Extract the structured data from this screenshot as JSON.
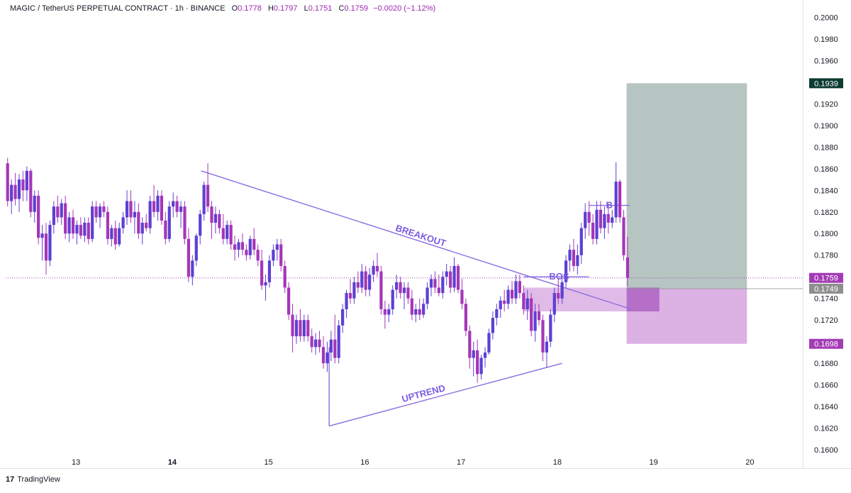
{
  "header": {
    "symbol": "MAGIC / TetherUS PERPETUAL CONTRACT · 1h · BINANCE",
    "open_label": "O",
    "open": "0.1778",
    "high_label": "H",
    "high": "0.1797",
    "low_label": "L",
    "low": "0.1751",
    "close_label": "C",
    "close": "0.1759",
    "change": "−0.0020 (−1.12%)"
  },
  "brand": {
    "logo": "17",
    "name": "TradingView"
  },
  "chart_data": {
    "type": "candlestick",
    "title": "MAGIC / TetherUS PERPETUAL CONTRACT · 1h · BINANCE",
    "y_ticks": [
      "0.1600",
      "0.1620",
      "0.1640",
      "0.1660",
      "0.1680",
      "0.1720",
      "0.1740",
      "0.1780",
      "0.1800",
      "0.1820",
      "0.1840",
      "0.1860",
      "0.1880",
      "0.1900",
      "0.1920",
      "0.1960",
      "0.1980",
      "0.2000"
    ],
    "ylim": [
      0.1583,
      0.2016
    ],
    "x_ticks": [
      {
        "label": "13",
        "day": 13,
        "bold": false
      },
      {
        "label": "14",
        "day": 14,
        "bold": true
      },
      {
        "label": "15",
        "day": 15,
        "bold": false
      },
      {
        "label": "16",
        "day": 16,
        "bold": false
      },
      {
        "label": "17",
        "day": 17,
        "bold": false
      },
      {
        "label": "18",
        "day": 18,
        "bold": false
      },
      {
        "label": "19",
        "day": 19,
        "bold": false
      },
      {
        "label": "20",
        "day": 20,
        "bold": false
      }
    ],
    "xlim_days": [
      12.27,
      20.55
    ],
    "price_labels": [
      {
        "value": 0.1939,
        "text": "0.1939",
        "color": "#0d3a32"
      },
      {
        "value": 0.1759,
        "text": "0.1759",
        "color": "#a43bb5"
      },
      {
        "value": 0.1749,
        "text": "0.1749",
        "color": "#8e8e8e"
      },
      {
        "value": 0.1698,
        "text": "0.1698",
        "color": "#a43bb5"
      }
    ],
    "current_price": 0.1759,
    "colors": {
      "up": "#5d3fd3",
      "down": "#a536b8",
      "trendline": "#8a6ee0",
      "profit_zone": "#b6c5c1",
      "stop_zone": "#dcb1e4",
      "order_block": "#c883d6"
    },
    "annotations": [
      "BREAKOUT",
      "UPTREND",
      "BOS",
      "B"
    ],
    "candles": [
      [
        12.29,
        0.1865,
        0.187,
        0.1825,
        0.183
      ],
      [
        12.33,
        0.183,
        0.185,
        0.1818,
        0.1845
      ],
      [
        12.37,
        0.1845,
        0.1856,
        0.1826,
        0.1832
      ],
      [
        12.41,
        0.1832,
        0.1855,
        0.182,
        0.185
      ],
      [
        12.45,
        0.185,
        0.1858,
        0.183,
        0.184
      ],
      [
        12.49,
        0.184,
        0.1862,
        0.183,
        0.1858
      ],
      [
        12.53,
        0.1858,
        0.186,
        0.1815,
        0.182
      ],
      [
        12.57,
        0.182,
        0.184,
        0.181,
        0.1835
      ],
      [
        12.61,
        0.1835,
        0.184,
        0.179,
        0.1796
      ],
      [
        12.65,
        0.1796,
        0.1808,
        0.1775,
        0.18
      ],
      [
        12.69,
        0.18,
        0.181,
        0.1762,
        0.1775
      ],
      [
        12.73,
        0.1775,
        0.1812,
        0.177,
        0.1808
      ],
      [
        12.77,
        0.1808,
        0.183,
        0.18,
        0.1825
      ],
      [
        12.81,
        0.1825,
        0.1835,
        0.181,
        0.1815
      ],
      [
        12.85,
        0.1815,
        0.1832,
        0.1808,
        0.1828
      ],
      [
        12.89,
        0.1828,
        0.1835,
        0.1795,
        0.18
      ],
      [
        12.93,
        0.18,
        0.182,
        0.1792,
        0.1815
      ],
      [
        12.97,
        0.1815,
        0.1822,
        0.1795,
        0.18
      ],
      [
        13.01,
        0.18,
        0.1812,
        0.179,
        0.1808
      ],
      [
        13.05,
        0.1808,
        0.1815,
        0.1795,
        0.1798
      ],
      [
        13.09,
        0.1798,
        0.1815,
        0.1792,
        0.181
      ],
      [
        13.13,
        0.181,
        0.1815,
        0.179,
        0.1795
      ],
      [
        13.17,
        0.1795,
        0.183,
        0.1792,
        0.1825
      ],
      [
        13.21,
        0.1825,
        0.183,
        0.181,
        0.1815
      ],
      [
        13.25,
        0.1815,
        0.1828,
        0.1805,
        0.1825
      ],
      [
        13.29,
        0.1825,
        0.183,
        0.1815,
        0.182
      ],
      [
        13.33,
        0.182,
        0.1825,
        0.179,
        0.1795
      ],
      [
        13.37,
        0.1795,
        0.1808,
        0.1788,
        0.1805
      ],
      [
        13.41,
        0.1805,
        0.1812,
        0.1785,
        0.179
      ],
      [
        13.45,
        0.179,
        0.181,
        0.1788,
        0.1805
      ],
      [
        13.49,
        0.1805,
        0.182,
        0.18,
        0.1815
      ],
      [
        13.53,
        0.1815,
        0.184,
        0.1808,
        0.183
      ],
      [
        13.57,
        0.183,
        0.184,
        0.181,
        0.1815
      ],
      [
        13.61,
        0.1815,
        0.183,
        0.18,
        0.182
      ],
      [
        13.65,
        0.182,
        0.1828,
        0.1795,
        0.18
      ],
      [
        13.69,
        0.18,
        0.1815,
        0.179,
        0.181
      ],
      [
        13.73,
        0.181,
        0.1818,
        0.1802,
        0.1805
      ],
      [
        13.77,
        0.1805,
        0.1835,
        0.18,
        0.183
      ],
      [
        13.81,
        0.183,
        0.1845,
        0.1815,
        0.182
      ],
      [
        13.85,
        0.182,
        0.184,
        0.1812,
        0.1835
      ],
      [
        13.89,
        0.1835,
        0.184,
        0.1808,
        0.1812
      ],
      [
        13.93,
        0.1812,
        0.182,
        0.179,
        0.1795
      ],
      [
        13.97,
        0.1795,
        0.183,
        0.1792,
        0.1825
      ],
      [
        14.01,
        0.1825,
        0.1838,
        0.1815,
        0.183
      ],
      [
        14.05,
        0.183,
        0.1835,
        0.1815,
        0.182
      ],
      [
        14.09,
        0.182,
        0.183,
        0.1805,
        0.1825
      ],
      [
        14.13,
        0.1825,
        0.183,
        0.179,
        0.1795
      ],
      [
        14.17,
        0.1795,
        0.1805,
        0.1755,
        0.176
      ],
      [
        14.21,
        0.176,
        0.178,
        0.1752,
        0.1775
      ],
      [
        14.25,
        0.1775,
        0.18,
        0.177,
        0.1798
      ],
      [
        14.29,
        0.1798,
        0.1822,
        0.179,
        0.1818
      ],
      [
        14.33,
        0.1818,
        0.1848,
        0.1812,
        0.1845
      ],
      [
        14.37,
        0.1845,
        0.1865,
        0.182,
        0.1825
      ],
      [
        14.41,
        0.1825,
        0.183,
        0.1795,
        0.181
      ],
      [
        14.45,
        0.181,
        0.1825,
        0.18,
        0.1818
      ],
      [
        14.49,
        0.1818,
        0.1822,
        0.18,
        0.1805
      ],
      [
        14.53,
        0.1805,
        0.1818,
        0.179,
        0.1795
      ],
      [
        14.57,
        0.1795,
        0.1812,
        0.179,
        0.1808
      ],
      [
        14.61,
        0.1808,
        0.1812,
        0.1785,
        0.179
      ],
      [
        14.65,
        0.179,
        0.1798,
        0.1775,
        0.1785
      ],
      [
        14.69,
        0.1785,
        0.1795,
        0.1778,
        0.1792
      ],
      [
        14.73,
        0.1792,
        0.18,
        0.178,
        0.1785
      ],
      [
        14.77,
        0.1785,
        0.179,
        0.1775,
        0.178
      ],
      [
        14.81,
        0.178,
        0.1798,
        0.1776,
        0.1795
      ],
      [
        14.85,
        0.1795,
        0.1805,
        0.178,
        0.1785
      ],
      [
        14.89,
        0.1785,
        0.179,
        0.177,
        0.1775
      ],
      [
        14.93,
        0.1775,
        0.1785,
        0.1748,
        0.1752
      ],
      [
        14.97,
        0.1752,
        0.1762,
        0.1738,
        0.1755
      ],
      [
        15.01,
        0.1755,
        0.178,
        0.175,
        0.1775
      ],
      [
        15.05,
        0.1775,
        0.179,
        0.177,
        0.1785
      ],
      [
        15.09,
        0.1785,
        0.1795,
        0.1775,
        0.179
      ],
      [
        15.13,
        0.179,
        0.1795,
        0.1765,
        0.177
      ],
      [
        15.17,
        0.177,
        0.1775,
        0.1745,
        0.175
      ],
      [
        15.21,
        0.175,
        0.1755,
        0.172,
        0.1725
      ],
      [
        15.25,
        0.1725,
        0.1735,
        0.169,
        0.1705
      ],
      [
        15.29,
        0.1705,
        0.1725,
        0.1698,
        0.172
      ],
      [
        15.33,
        0.172,
        0.173,
        0.17,
        0.1705
      ],
      [
        15.37,
        0.1705,
        0.1725,
        0.17,
        0.172
      ],
      [
        15.41,
        0.172,
        0.1725,
        0.17,
        0.1705
      ],
      [
        15.45,
        0.1705,
        0.1712,
        0.169,
        0.1695
      ],
      [
        15.49,
        0.1695,
        0.1708,
        0.1688,
        0.1702
      ],
      [
        15.53,
        0.1702,
        0.171,
        0.169,
        0.1695
      ],
      [
        15.57,
        0.1695,
        0.1705,
        0.1675,
        0.168
      ],
      [
        15.61,
        0.168,
        0.17,
        0.1672,
        0.169
      ],
      [
        15.65,
        0.169,
        0.171,
        0.1682,
        0.1702
      ],
      [
        15.69,
        0.1702,
        0.1725,
        0.168,
        0.1685
      ],
      [
        15.73,
        0.1685,
        0.172,
        0.168,
        0.1715
      ],
      [
        15.77,
        0.1715,
        0.1735,
        0.1708,
        0.173
      ],
      [
        15.81,
        0.173,
        0.1748,
        0.1722,
        0.1745
      ],
      [
        15.85,
        0.1745,
        0.1758,
        0.1735,
        0.174
      ],
      [
        15.89,
        0.174,
        0.176,
        0.1735,
        0.1755
      ],
      [
        15.93,
        0.1755,
        0.1765,
        0.1745,
        0.175
      ],
      [
        15.97,
        0.175,
        0.1772,
        0.1745,
        0.1765
      ],
      [
        16.01,
        0.1765,
        0.177,
        0.1742,
        0.1748
      ],
      [
        16.05,
        0.1748,
        0.1768,
        0.1742,
        0.1762
      ],
      [
        16.09,
        0.1762,
        0.1775,
        0.1755,
        0.177
      ],
      [
        16.13,
        0.177,
        0.1782,
        0.176,
        0.1765
      ],
      [
        16.17,
        0.1765,
        0.177,
        0.1725,
        0.173
      ],
      [
        16.21,
        0.173,
        0.1738,
        0.1712,
        0.1725
      ],
      [
        16.25,
        0.1725,
        0.1735,
        0.1718,
        0.173
      ],
      [
        16.29,
        0.173,
        0.1752,
        0.1725,
        0.1748
      ],
      [
        16.33,
        0.1748,
        0.1762,
        0.174,
        0.1755
      ],
      [
        16.37,
        0.1755,
        0.176,
        0.174,
        0.1745
      ],
      [
        16.41,
        0.1745,
        0.1755,
        0.173,
        0.175
      ],
      [
        16.45,
        0.175,
        0.1755,
        0.1735,
        0.174
      ],
      [
        16.49,
        0.174,
        0.1748,
        0.172,
        0.1725
      ],
      [
        16.53,
        0.1725,
        0.1735,
        0.1718,
        0.173
      ],
      [
        16.57,
        0.173,
        0.174,
        0.172,
        0.1725
      ],
      [
        16.61,
        0.1725,
        0.174,
        0.1722,
        0.1735
      ],
      [
        16.65,
        0.1735,
        0.1755,
        0.173,
        0.175
      ],
      [
        16.69,
        0.175,
        0.1762,
        0.1742,
        0.1758
      ],
      [
        16.73,
        0.1758,
        0.1765,
        0.1745,
        0.175
      ],
      [
        16.77,
        0.175,
        0.1762,
        0.1742,
        0.1745
      ],
      [
        16.81,
        0.1745,
        0.1765,
        0.174,
        0.176
      ],
      [
        16.85,
        0.176,
        0.1772,
        0.1752,
        0.1765
      ],
      [
        16.89,
        0.1765,
        0.177,
        0.1745,
        0.175
      ],
      [
        16.93,
        0.175,
        0.1778,
        0.1746,
        0.177
      ],
      [
        16.97,
        0.177,
        0.1772,
        0.1745,
        0.1748
      ],
      [
        17.01,
        0.1748,
        0.1758,
        0.173,
        0.1735
      ],
      [
        17.05,
        0.1735,
        0.174,
        0.1705,
        0.171
      ],
      [
        17.09,
        0.171,
        0.1715,
        0.1675,
        0.1685
      ],
      [
        17.13,
        0.1685,
        0.17,
        0.1668,
        0.1692
      ],
      [
        17.17,
        0.1692,
        0.1702,
        0.1662,
        0.167
      ],
      [
        17.21,
        0.167,
        0.1688,
        0.1665,
        0.1685
      ],
      [
        17.25,
        0.1685,
        0.1695,
        0.1676,
        0.169
      ],
      [
        17.29,
        0.169,
        0.1712,
        0.1688,
        0.1708
      ],
      [
        17.33,
        0.1708,
        0.1728,
        0.1702,
        0.1722
      ],
      [
        17.37,
        0.1722,
        0.1735,
        0.1715,
        0.173
      ],
      [
        17.41,
        0.173,
        0.1742,
        0.1722,
        0.1738
      ],
      [
        17.45,
        0.1738,
        0.1748,
        0.1728,
        0.1735
      ],
      [
        17.49,
        0.1735,
        0.1752,
        0.173,
        0.1748
      ],
      [
        17.53,
        0.1748,
        0.1756,
        0.1735,
        0.174
      ],
      [
        17.57,
        0.174,
        0.1762,
        0.1735,
        0.1756
      ],
      [
        17.61,
        0.1756,
        0.1762,
        0.174,
        0.1745
      ],
      [
        17.65,
        0.1745,
        0.1752,
        0.1725,
        0.173
      ],
      [
        17.69,
        0.173,
        0.1748,
        0.172,
        0.174
      ],
      [
        17.73,
        0.174,
        0.1745,
        0.1705,
        0.171
      ],
      [
        17.77,
        0.171,
        0.1735,
        0.17,
        0.1728
      ],
      [
        17.81,
        0.1728,
        0.1735,
        0.1715,
        0.172
      ],
      [
        17.85,
        0.172,
        0.1725,
        0.1682,
        0.169
      ],
      [
        17.89,
        0.169,
        0.1705,
        0.1676,
        0.17
      ],
      [
        17.93,
        0.17,
        0.173,
        0.1695,
        0.1725
      ],
      [
        17.97,
        0.1725,
        0.175,
        0.1718,
        0.1745
      ],
      [
        18.01,
        0.1745,
        0.1758,
        0.1735,
        0.174
      ],
      [
        18.05,
        0.174,
        0.1762,
        0.1735,
        0.1755
      ],
      [
        18.09,
        0.1755,
        0.178,
        0.175,
        0.1775
      ],
      [
        18.13,
        0.1775,
        0.179,
        0.1765,
        0.1785
      ],
      [
        18.17,
        0.1785,
        0.1795,
        0.1765,
        0.177
      ],
      [
        18.21,
        0.177,
        0.179,
        0.1762,
        0.178
      ],
      [
        18.25,
        0.178,
        0.181,
        0.1772,
        0.1805
      ],
      [
        18.29,
        0.1805,
        0.1828,
        0.1795,
        0.182
      ],
      [
        18.33,
        0.182,
        0.183,
        0.1798,
        0.181
      ],
      [
        18.37,
        0.181,
        0.1818,
        0.179,
        0.1795
      ],
      [
        18.41,
        0.1795,
        0.183,
        0.179,
        0.1822
      ],
      [
        18.45,
        0.1822,
        0.183,
        0.18,
        0.1805
      ],
      [
        18.49,
        0.1805,
        0.1825,
        0.1795,
        0.1818
      ],
      [
        18.53,
        0.1818,
        0.1828,
        0.18,
        0.181
      ],
      [
        18.57,
        0.181,
        0.1822,
        0.1805,
        0.1815
      ],
      [
        18.61,
        0.1815,
        0.1866,
        0.181,
        0.1848
      ],
      [
        18.65,
        0.1848,
        0.185,
        0.181,
        0.1815
      ],
      [
        18.69,
        0.1815,
        0.1822,
        0.1775,
        0.178
      ],
      [
        18.73,
        0.1778,
        0.1797,
        0.1751,
        0.1759
      ]
    ],
    "overlays": {
      "profit_zone": {
        "day_from": 18.72,
        "day_to": 19.97,
        "price_from": 0.1749,
        "price_to": 0.1939
      },
      "stop_zone": {
        "day_from": 18.72,
        "day_to": 19.97,
        "price_from": 0.1698,
        "price_to": 0.1749
      },
      "order_block": {
        "day_from": 17.65,
        "day_to": 19.06,
        "price_from": 0.1728,
        "price_to": 0.175
      },
      "order_block_dark": {
        "day_from": 18.72,
        "day_to": 19.06,
        "price_from": 0.1728,
        "price_to": 0.175
      },
      "breakout_line": {
        "day_from": 14.3,
        "price_from": 0.1858,
        "day_to": 18.77,
        "price_to": 0.173
      },
      "uptrend_line": {
        "day_from": 15.63,
        "price_from": 0.1622,
        "day_to": 18.05,
        "price_to": 0.168
      },
      "uptrend_vertical": {
        "day": 15.63,
        "price_from": 0.1622,
        "price_to": 0.1695
      },
      "bos_line": {
        "day_from": 17.65,
        "day_to": 18.33,
        "price": 0.176
      },
      "b_line": {
        "day_from": 18.33,
        "day_to": 18.75,
        "price": 0.1826
      }
    }
  }
}
